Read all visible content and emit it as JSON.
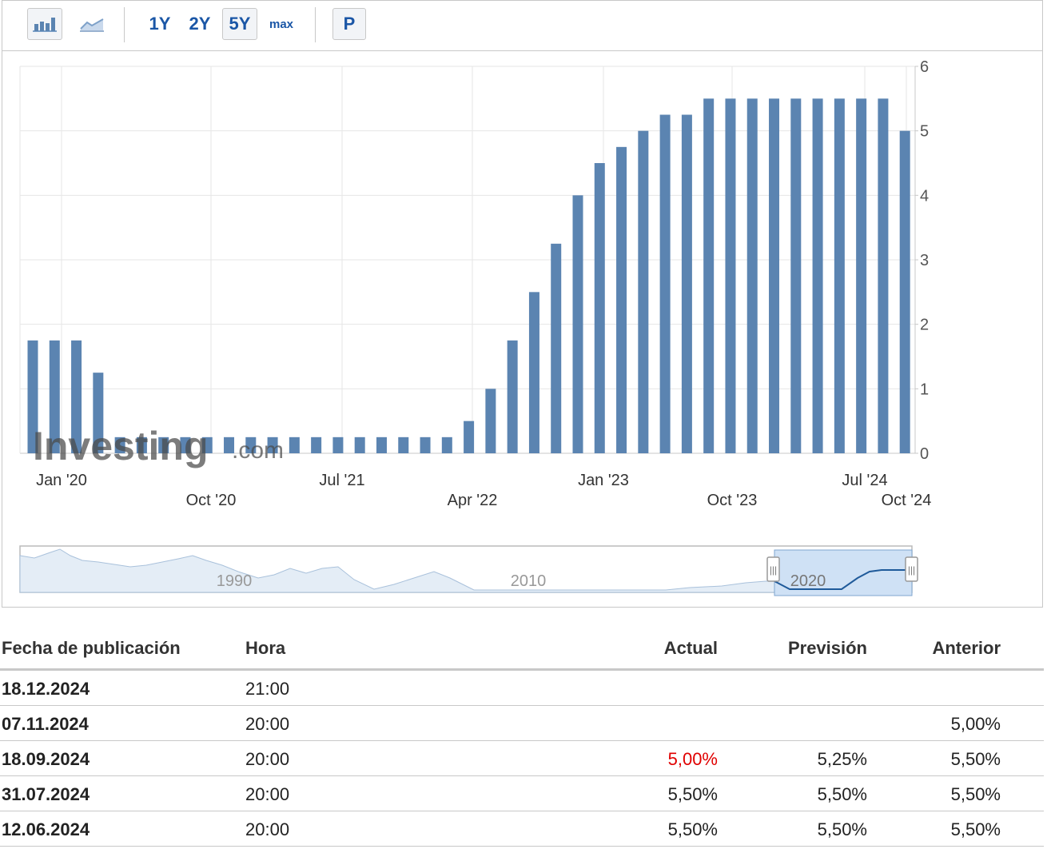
{
  "toolbar": {
    "icons": [
      "bar-chart-icon",
      "line-chart-icon"
    ],
    "periods": [
      "1Y",
      "2Y",
      "5Y",
      "max"
    ],
    "active_period": "5Y",
    "p_label": "P"
  },
  "chart_data": {
    "type": "bar",
    "ylim": [
      0,
      6
    ],
    "y_ticks": [
      0,
      1,
      2,
      3,
      4,
      5,
      6
    ],
    "x_tick_labels_row1": [
      "Jan '20",
      "Jul '21",
      "Jan '23",
      "Jul '24"
    ],
    "x_tick_labels_row2": [
      "Oct '20",
      "Apr '22",
      "Oct '23",
      "Oct '24"
    ],
    "values": [
      1.75,
      1.75,
      1.75,
      1.25,
      0.25,
      0.25,
      0.25,
      0.25,
      0.25,
      0.25,
      0.25,
      0.25,
      0.25,
      0.25,
      0.25,
      0.25,
      0.25,
      0.25,
      0.25,
      0.25,
      0.5,
      1.0,
      1.75,
      2.5,
      3.25,
      4.0,
      4.5,
      4.75,
      5.0,
      5.25,
      5.25,
      5.5,
      5.5,
      5.5,
      5.5,
      5.5,
      5.5,
      5.5,
      5.5,
      5.5,
      5.0
    ],
    "bar_color": "#5b84b1",
    "grid": true,
    "watermark": "Investing",
    "watermark_suffix": ".com"
  },
  "navigator": {
    "year_labels": [
      "1990",
      "2010",
      "2020"
    ],
    "handle_glyph": "|||"
  },
  "table": {
    "headers": {
      "date": "Fecha de publicación",
      "time": "Hora",
      "actual": "Actual",
      "forecast": "Previsión",
      "previous": "Anterior"
    },
    "rows": [
      {
        "date": "18.12.2024",
        "time": "21:00",
        "actual": "",
        "forecast": "",
        "previous": ""
      },
      {
        "date": "07.11.2024",
        "time": "20:00",
        "actual": "",
        "forecast": "",
        "previous": "5,00%"
      },
      {
        "date": "18.09.2024",
        "time": "20:00",
        "actual": "5,00%",
        "forecast": "5,25%",
        "previous": "5,50%",
        "actual_color": "#e00000"
      },
      {
        "date": "31.07.2024",
        "time": "20:00",
        "actual": "5,50%",
        "forecast": "5,50%",
        "previous": "5,50%"
      },
      {
        "date": "12.06.2024",
        "time": "20:00",
        "actual": "5,50%",
        "forecast": "5,50%",
        "previous": "5,50%"
      }
    ]
  }
}
